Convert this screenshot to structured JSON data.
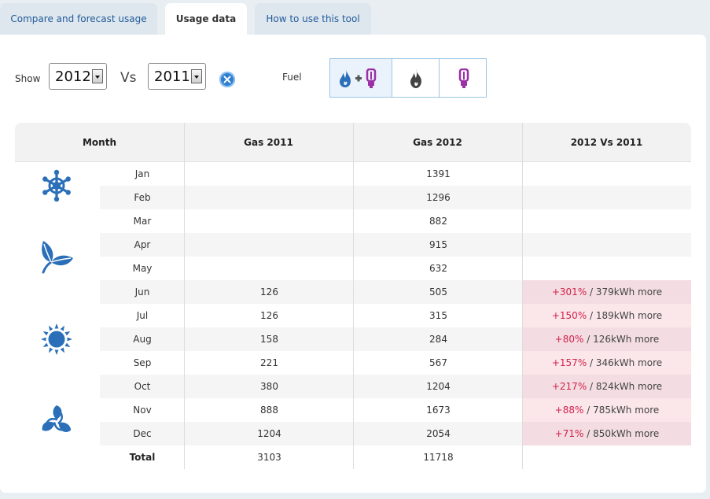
{
  "tabs": [
    {
      "label": "Compare and forecast usage",
      "active": false
    },
    {
      "label": "Usage data",
      "active": true
    },
    {
      "label": "How to use this tool",
      "active": false
    }
  ],
  "controls": {
    "show_label": "Show",
    "year_selected": "2012",
    "vs_label": "Vs",
    "compare_year_selected": "2011",
    "fuel_label": "Fuel",
    "fuel_options": [
      "gas-and-electricity-icon",
      "gas-flame-icon",
      "electricity-bulb-icon"
    ]
  },
  "colors": {
    "accent": "#2a6fb8",
    "diff_positive": "#d2224a",
    "diff_background": "#fbe6ea",
    "electricity": "#9b2fa5"
  },
  "table": {
    "columns": [
      "Month",
      "Gas 2011",
      "Gas 2012",
      "2012 Vs 2011"
    ],
    "rows": [
      {
        "month": "Jan",
        "gas_2011": "",
        "gas_2012": "1391",
        "diff_pct": "",
        "diff_rest": ""
      },
      {
        "month": "Feb",
        "gas_2011": "",
        "gas_2012": "1296",
        "diff_pct": "",
        "diff_rest": ""
      },
      {
        "month": "Mar",
        "gas_2011": "",
        "gas_2012": "882",
        "diff_pct": "",
        "diff_rest": ""
      },
      {
        "month": "Apr",
        "gas_2011": "",
        "gas_2012": "915",
        "diff_pct": "",
        "diff_rest": ""
      },
      {
        "month": "May",
        "gas_2011": "",
        "gas_2012": "632",
        "diff_pct": "",
        "diff_rest": ""
      },
      {
        "month": "Jun",
        "gas_2011": "126",
        "gas_2012": "505",
        "diff_pct": "+301%",
        "diff_rest": " / 379kWh more"
      },
      {
        "month": "Jul",
        "gas_2011": "126",
        "gas_2012": "315",
        "diff_pct": "+150%",
        "diff_rest": " / 189kWh more"
      },
      {
        "month": "Aug",
        "gas_2011": "158",
        "gas_2012": "284",
        "diff_pct": "+80%",
        "diff_rest": " / 126kWh more"
      },
      {
        "month": "Sep",
        "gas_2011": "221",
        "gas_2012": "567",
        "diff_pct": "+157%",
        "diff_rest": " / 346kWh more"
      },
      {
        "month": "Oct",
        "gas_2011": "380",
        "gas_2012": "1204",
        "diff_pct": "+217%",
        "diff_rest": " / 824kWh more"
      },
      {
        "month": "Nov",
        "gas_2011": "888",
        "gas_2012": "1673",
        "diff_pct": "+88%",
        "diff_rest": " / 785kWh more"
      },
      {
        "month": "Dec",
        "gas_2011": "1204",
        "gas_2012": "2054",
        "diff_pct": "+71%",
        "diff_rest": " / 850kWh more"
      }
    ],
    "total": {
      "label": "Total",
      "gas_2011": "3103",
      "gas_2012": "11718"
    }
  },
  "season_icons": [
    "winter-snowflake-icon",
    "spring-leaf-icon",
    "summer-sun-icon",
    "autumn-leaves-icon"
  ]
}
